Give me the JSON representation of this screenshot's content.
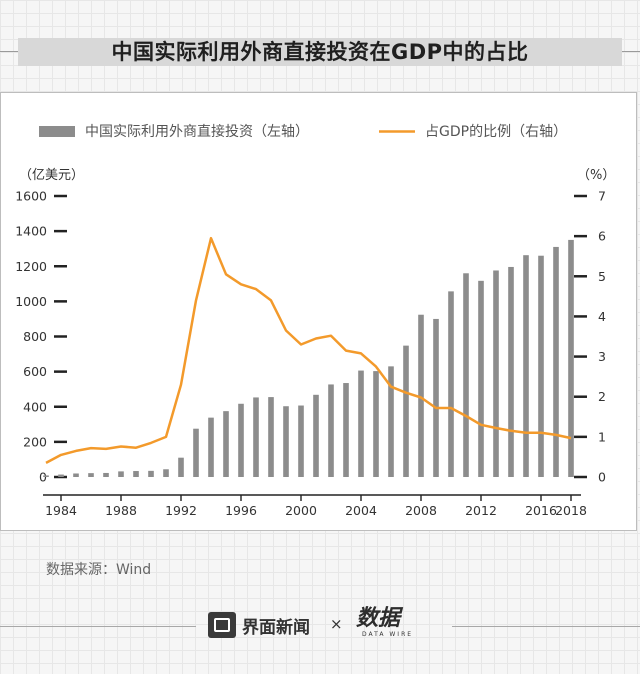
{
  "title": "中国实际利用外商直接投资在GDP中的占比",
  "source": "数据来源：Wind",
  "footer": {
    "brand": "界面新闻",
    "separator": "×",
    "partner": "数据",
    "partner_sub": "DATA WIRE"
  },
  "colors": {
    "bars": "#8c8c8c",
    "line": "#f39a2b",
    "axis": "#222222"
  },
  "chart_data": {
    "type": "bar+line",
    "legend": {
      "bar_label": "中国实际利用外商直接投资（左轴）",
      "line_label": "占GDP的比例（右轴）"
    },
    "left_axis": {
      "unit": "（亿美元）",
      "range": [
        0,
        1600
      ],
      "ticks": [
        "0",
        "200",
        "400",
        "600",
        "800",
        "1000",
        "1200",
        "1400",
        "1600"
      ]
    },
    "right_axis": {
      "unit": "（%）",
      "range": [
        0,
        7
      ],
      "ticks": [
        "0",
        "1",
        "2",
        "3",
        "4",
        "5",
        "6",
        "7"
      ]
    },
    "x_tick_labels": [
      "1984",
      "1988",
      "1992",
      "1996",
      "2000",
      "2004",
      "2008",
      "2012",
      "2016",
      "2018"
    ],
    "years": [
      1983,
      1984,
      1985,
      1986,
      1987,
      1988,
      1989,
      1990,
      1991,
      1992,
      1993,
      1994,
      1995,
      1996,
      1997,
      1998,
      1999,
      2000,
      2001,
      2002,
      2003,
      2004,
      2005,
      2006,
      2007,
      2008,
      2009,
      2010,
      2011,
      2012,
      2013,
      2014,
      2015,
      2016,
      2017,
      2018
    ],
    "series": [
      {
        "name": "中国实际利用外商直接投资（左轴）",
        "type": "bar",
        "axis": "left",
        "values": [
          9,
          14,
          20,
          22,
          23,
          32,
          34,
          35,
          44,
          110,
          275,
          338,
          375,
          417,
          453,
          455,
          403,
          407,
          468,
          527,
          535,
          606,
          603,
          630,
          748,
          924,
          900,
          1057,
          1160,
          1117,
          1176,
          1196,
          1263,
          1260,
          1310,
          1350
        ]
      },
      {
        "name": "占GDP的比例（右轴）",
        "type": "line",
        "axis": "right",
        "values": [
          0.35,
          0.55,
          0.65,
          0.72,
          0.7,
          0.76,
          0.73,
          0.85,
          1.0,
          2.3,
          4.4,
          5.95,
          5.05,
          4.8,
          4.68,
          4.4,
          3.65,
          3.3,
          3.45,
          3.52,
          3.15,
          3.08,
          2.75,
          2.25,
          2.1,
          1.98,
          1.72,
          1.72,
          1.52,
          1.3,
          1.22,
          1.15,
          1.1,
          1.1,
          1.05,
          0.97
        ]
      }
    ]
  }
}
